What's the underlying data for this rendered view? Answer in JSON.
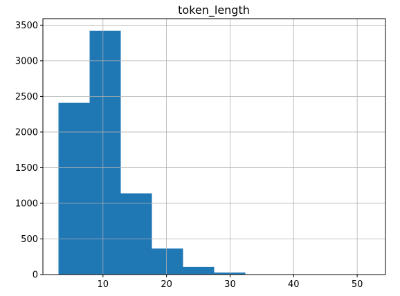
{
  "chart_data": {
    "type": "bar",
    "title": "token_length",
    "xlabel": "",
    "ylabel": "",
    "bins": [
      {
        "x0": 3.0,
        "x1": 7.9,
        "value": 2410
      },
      {
        "x0": 7.9,
        "x1": 12.8,
        "value": 3420
      },
      {
        "x0": 12.8,
        "x1": 17.7,
        "value": 1140
      },
      {
        "x0": 17.7,
        "x1": 22.6,
        "value": 365
      },
      {
        "x0": 22.6,
        "x1": 27.5,
        "value": 108
      },
      {
        "x0": 27.5,
        "x1": 32.4,
        "value": 28
      },
      {
        "x0": 32.4,
        "x1": 37.3,
        "value": 5
      },
      {
        "x0": 37.3,
        "x1": 42.2,
        "value": 2
      },
      {
        "x0": 42.2,
        "x1": 47.1,
        "value": 1
      },
      {
        "x0": 47.1,
        "x1": 52.0,
        "value": 1
      }
    ],
    "xlim": [
      0.55,
      54.45
    ],
    "ylim": [
      0,
      3591
    ],
    "xticks": [
      10,
      20,
      30,
      40,
      50
    ],
    "yticks": [
      0,
      500,
      1000,
      1500,
      2000,
      2500,
      3000,
      3500
    ],
    "grid": true,
    "bar_color": "#1f77b4",
    "grid_color": "#b0b0b0"
  }
}
